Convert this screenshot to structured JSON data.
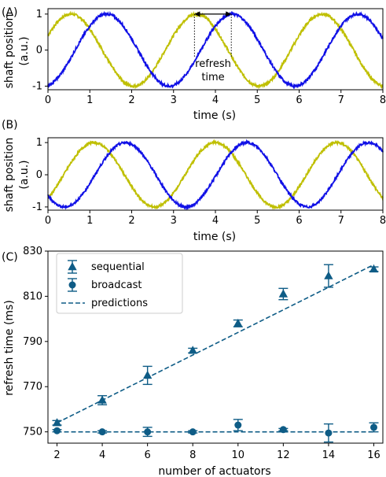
{
  "colors": {
    "yellow": "#bfbf00",
    "blue": "#1010e6",
    "navy": "#0e5c86"
  },
  "panel_labels": [
    "(A)",
    "(B)",
    "(C)"
  ],
  "chart_data": [
    {
      "type": "line",
      "panel": "(A)",
      "xlabel": "time (s)",
      "ylabel": [
        "shaft position",
        "(a.u.)"
      ],
      "xlim": [
        0,
        8
      ],
      "ylim": [
        -1.1,
        1.15
      ],
      "xticks": [
        0,
        1,
        2,
        3,
        4,
        5,
        6,
        7,
        8
      ],
      "yticks": [
        -1,
        0,
        1
      ],
      "series": [
        {
          "color": "#bfbf00",
          "function": "sin",
          "period_s": 3,
          "peak_at_s": 0.55
        },
        {
          "color": "#1010e6",
          "function": "sin",
          "period_s": 3,
          "peak_at_s": 1.4
        }
      ],
      "annotation": {
        "text": [
          "refresh",
          "time"
        ],
        "x_start": 3.5,
        "x_end": 4.38,
        "y": 1.0
      }
    },
    {
      "type": "line",
      "panel": "(B)",
      "xlabel": "time (s)",
      "ylabel": [
        "shaft position",
        "(a.u.)"
      ],
      "xlim": [
        0,
        8
      ],
      "ylim": [
        -1.1,
        1.15
      ],
      "xticks": [
        0,
        1,
        2,
        3,
        4,
        5,
        6,
        7,
        8
      ],
      "yticks": [
        -1,
        0,
        1
      ],
      "series": [
        {
          "color": "#bfbf00",
          "function": "sin",
          "period_s": 2.9,
          "peak_at_s": 1.1
        },
        {
          "color": "#1010e6",
          "function": "sin",
          "period_s": 2.9,
          "peak_at_s": 1.85
        }
      ]
    },
    {
      "type": "scatter",
      "panel": "(C)",
      "xlabel": "number of actuators",
      "ylabel": "refresh time (ms)",
      "xlim": [
        1.6,
        16.4
      ],
      "ylim": [
        745,
        830
      ],
      "xticks": [
        2,
        4,
        6,
        8,
        10,
        12,
        14,
        16
      ],
      "yticks": [
        750,
        770,
        790,
        810,
        830
      ],
      "legend_position": "upper-left",
      "series": [
        {
          "name": "sequential",
          "marker": "triangle",
          "x": [
            2,
            4,
            6,
            8,
            10,
            12,
            14,
            16
          ],
          "y": [
            754,
            764,
            775,
            786,
            798,
            811,
            819,
            822
          ],
          "err": [
            1,
            2,
            4,
            1,
            1.5,
            2.5,
            5,
            1
          ]
        },
        {
          "name": "broadcast",
          "marker": "circle",
          "x": [
            2,
            4,
            6,
            8,
            10,
            12,
            14,
            16
          ],
          "y": [
            750.5,
            750,
            750,
            750,
            753,
            751,
            749.5,
            752
          ],
          "err": [
            0.5,
            0.5,
            2,
            0.5,
            2.5,
            0.5,
            4,
            2
          ]
        },
        {
          "name": "predictions",
          "style": "dashed",
          "lines": [
            {
              "x": [
                2,
                16
              ],
              "y": [
                754,
                824
              ]
            },
            {
              "x": [
                2,
                16
              ],
              "y": [
                750,
                750
              ]
            }
          ]
        }
      ]
    }
  ]
}
